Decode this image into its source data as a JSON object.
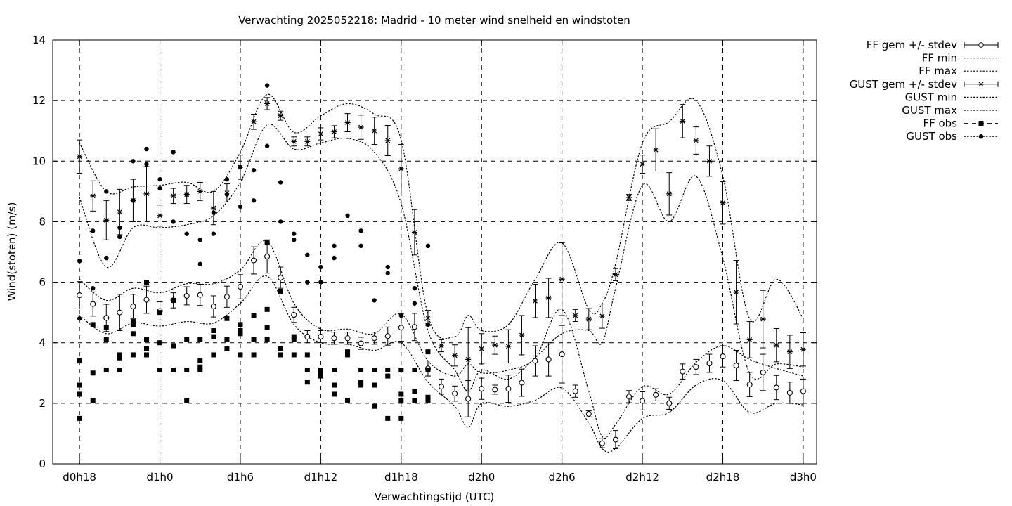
{
  "chart_data": {
    "type": "scatter",
    "title": "Verwachting 2025052218: Madrid - 10 meter wind snelheid en windstoten",
    "xlabel": "Verwachtingstijd (UTC)",
    "ylabel": "Wind(stoten) (m/s)",
    "xlim": [
      -2,
      55
    ],
    "ylim": [
      0,
      14
    ],
    "yticks": [
      0,
      2,
      4,
      6,
      8,
      10,
      12,
      14
    ],
    "xticks": [
      0,
      6,
      12,
      18,
      24,
      30,
      36,
      42,
      48,
      54
    ],
    "xtick_labels": [
      "d0h18",
      "d1h0",
      "d1h6",
      "d1h12",
      "d1h18",
      "d2h0",
      "d2h6",
      "d2h12",
      "d2h18",
      "d3h0"
    ],
    "grid": true,
    "legend_position": "outside-top-right",
    "legend": [
      "FF gem +/- stdev",
      "FF min",
      "FF max",
      "GUST gem +/- stdev",
      "GUST min",
      "GUST max",
      "FF obs",
      "GUST obs"
    ],
    "series": [
      {
        "name": "FF gem +/- stdev",
        "x": [
          0,
          1,
          2,
          3,
          4,
          5,
          6,
          7,
          8,
          9,
          10,
          11,
          12,
          13,
          14,
          15,
          16,
          17,
          18,
          19,
          20,
          21,
          22,
          23,
          24,
          25,
          26,
          27,
          28,
          29,
          30,
          31,
          32,
          33,
          34,
          35,
          36,
          37,
          38,
          39,
          40,
          41,
          42,
          43,
          44,
          45,
          46,
          47,
          48,
          49,
          50,
          51,
          52,
          53,
          54
        ],
        "mean": [
          5.57,
          5.28,
          4.82,
          5.0,
          5.2,
          5.42,
          5.05,
          5.4,
          5.55,
          5.58,
          5.2,
          5.52,
          5.85,
          6.72,
          6.85,
          6.15,
          4.92,
          4.2,
          4.2,
          4.15,
          4.15,
          3.98,
          4.15,
          4.22,
          4.5,
          4.52,
          3.15,
          2.55,
          2.32,
          2.15,
          2.48,
          2.45,
          2.48,
          2.68,
          3.4,
          3.45,
          3.62,
          2.4,
          1.65,
          0.68,
          0.8,
          2.22,
          2.08,
          2.28,
          2.0,
          3.05,
          3.2,
          3.32,
          3.55,
          3.25,
          2.62,
          3.02,
          2.52,
          2.35,
          2.4
        ],
        "stdev": [
          0.45,
          0.4,
          0.45,
          0.6,
          0.4,
          0.45,
          0.3,
          0.25,
          0.3,
          0.35,
          0.35,
          0.35,
          0.4,
          0.45,
          0.55,
          0.35,
          0.25,
          0.2,
          0.2,
          0.2,
          0.2,
          0.2,
          0.2,
          0.3,
          0.45,
          0.45,
          0.25,
          0.25,
          0.25,
          0.6,
          0.35,
          0.15,
          0.45,
          0.45,
          0.5,
          0.55,
          0.95,
          0.2,
          0.1,
          0.15,
          0.3,
          0.2,
          0.3,
          0.2,
          0.2,
          0.25,
          0.25,
          0.3,
          0.35,
          0.5,
          0.4,
          0.6,
          0.4,
          0.35,
          0.4
        ]
      },
      {
        "name": "FF min",
        "x": [
          0,
          2,
          4,
          6,
          8,
          10,
          12,
          14,
          16,
          18,
          20,
          22,
          24,
          26,
          28,
          29,
          30,
          32,
          34,
          36,
          38,
          39,
          40,
          42,
          44,
          46,
          48,
          50,
          52,
          54
        ],
        "values": [
          4.9,
          4.3,
          4.65,
          4.55,
          4.7,
          4.65,
          5.3,
          6.2,
          4.6,
          4.0,
          3.95,
          3.75,
          4.0,
          2.7,
          1.9,
          1.2,
          2.0,
          1.9,
          2.1,
          2.5,
          1.35,
          0.5,
          0.5,
          1.5,
          1.7,
          2.6,
          2.75,
          1.7,
          2.0,
          1.95
        ]
      },
      {
        "name": "FF max",
        "x": [
          0,
          2,
          4,
          6,
          8,
          10,
          12,
          14,
          16,
          18,
          20,
          22,
          24,
          26,
          28,
          29,
          30,
          32,
          34,
          36,
          38,
          39,
          40,
          42,
          44,
          46,
          48,
          50,
          52,
          54
        ],
        "values": [
          6.1,
          5.4,
          5.8,
          5.65,
          5.95,
          5.95,
          6.4,
          7.35,
          5.3,
          4.45,
          4.45,
          4.3,
          4.95,
          3.4,
          2.9,
          3.3,
          3.0,
          3.1,
          3.5,
          5.1,
          2.4,
          0.9,
          1.3,
          2.55,
          2.3,
          3.35,
          3.9,
          3.45,
          3.15,
          2.9
        ]
      },
      {
        "name": "GUST gem +/- stdev",
        "x": [
          0,
          1,
          2,
          3,
          4,
          5,
          6,
          7,
          8,
          9,
          10,
          11,
          12,
          13,
          14,
          15,
          16,
          17,
          18,
          19,
          20,
          21,
          22,
          23,
          24,
          25,
          26,
          27,
          28,
          29,
          30,
          31,
          32,
          33,
          34,
          35,
          36,
          37,
          38,
          39,
          40,
          41,
          42,
          43,
          44,
          45,
          46,
          47,
          48,
          49,
          50,
          51,
          52,
          53,
          54
        ],
        "mean": [
          10.15,
          8.85,
          8.05,
          8.32,
          8.7,
          8.92,
          8.2,
          8.85,
          8.9,
          9.0,
          8.45,
          8.95,
          9.8,
          11.3,
          11.9,
          11.5,
          10.65,
          10.65,
          10.9,
          10.97,
          11.27,
          11.12,
          11.0,
          10.68,
          9.75,
          7.65,
          4.82,
          3.9,
          3.58,
          3.45,
          3.8,
          3.92,
          3.88,
          4.25,
          5.38,
          5.48,
          6.1,
          4.9,
          4.78,
          4.88,
          6.25,
          8.8,
          9.9,
          10.37,
          8.92,
          11.32,
          10.68,
          10.0,
          8.62,
          5.67,
          4.1,
          4.78,
          3.92,
          3.7,
          3.78
        ]
      },
      {
        "name": "GUST min",
        "x": [
          0,
          2,
          4,
          6,
          8,
          10,
          12,
          14,
          16,
          18,
          20,
          22,
          24,
          26,
          28,
          29,
          30,
          32,
          34,
          36,
          38,
          39,
          40,
          42,
          44,
          46,
          48,
          50,
          52,
          54
        ],
        "values": [
          8.8,
          6.5,
          7.8,
          7.8,
          7.9,
          8.2,
          9.3,
          11.2,
          10.4,
          10.6,
          10.75,
          10.3,
          8.6,
          4.4,
          3.1,
          2.4,
          3.1,
          2.8,
          3.5,
          4.3,
          4.4,
          4.0,
          5.8,
          9.2,
          8.0,
          9.5,
          6.8,
          3.0,
          3.3,
          3.2
        ]
      },
      {
        "name": "GUST max",
        "x": [
          0,
          2,
          4,
          6,
          8,
          10,
          12,
          14,
          16,
          18,
          20,
          22,
          24,
          26,
          28,
          29,
          30,
          32,
          34,
          36,
          38,
          39,
          40,
          42,
          44,
          46,
          48,
          50,
          52,
          54
        ],
        "values": [
          10.6,
          9.0,
          9.15,
          9.2,
          9.3,
          9.0,
          10.3,
          12.2,
          10.95,
          11.5,
          11.9,
          11.55,
          10.7,
          4.9,
          4.2,
          4.9,
          4.4,
          4.6,
          6.1,
          7.3,
          5.1,
          5.3,
          6.6,
          10.6,
          11.3,
          12.0,
          9.5,
          4.8,
          6.1,
          4.8
        ]
      }
    ],
    "ff_obs": [
      [
        0,
        1.5
      ],
      [
        0,
        2.3
      ],
      [
        0,
        2.6
      ],
      [
        0,
        3.4
      ],
      [
        1,
        2.1
      ],
      [
        1,
        3.0
      ],
      [
        1,
        4.6
      ],
      [
        2,
        3.1
      ],
      [
        2,
        4.1
      ],
      [
        2,
        4.5
      ],
      [
        3,
        3.1
      ],
      [
        3,
        3.5
      ],
      [
        3,
        3.6
      ],
      [
        4,
        3.6
      ],
      [
        4,
        4.3
      ],
      [
        4,
        4.6
      ],
      [
        4,
        4.7
      ],
      [
        5,
        3.6
      ],
      [
        5,
        3.8
      ],
      [
        5,
        4.1
      ],
      [
        5,
        6.0
      ],
      [
        6,
        3.1
      ],
      [
        6,
        4.0
      ],
      [
        6,
        5.0
      ],
      [
        7,
        3.1
      ],
      [
        7,
        3.9
      ],
      [
        7,
        5.4
      ],
      [
        8,
        2.1
      ],
      [
        8,
        3.1
      ],
      [
        8,
        4.1
      ],
      [
        9,
        3.1
      ],
      [
        9,
        3.2
      ],
      [
        9,
        3.4
      ],
      [
        9,
        4.1
      ],
      [
        10,
        3.6
      ],
      [
        10,
        4.2
      ],
      [
        10,
        4.4
      ],
      [
        11,
        3.8
      ],
      [
        11,
        4.1
      ],
      [
        11,
        4.8
      ],
      [
        12,
        3.6
      ],
      [
        12,
        4.3
      ],
      [
        12,
        4.4
      ],
      [
        12,
        4.6
      ],
      [
        13,
        3.6
      ],
      [
        13,
        4.1
      ],
      [
        13,
        4.9
      ],
      [
        14,
        4.1
      ],
      [
        14,
        4.5
      ],
      [
        14,
        5.1
      ],
      [
        14,
        7.3
      ],
      [
        15,
        3.6
      ],
      [
        15,
        3.8
      ],
      [
        15,
        5.7
      ],
      [
        16,
        3.6
      ],
      [
        16,
        4.1
      ],
      [
        16,
        4.2
      ],
      [
        17,
        2.7
      ],
      [
        17,
        3.1
      ],
      [
        17,
        3.6
      ],
      [
        18,
        2.9
      ],
      [
        18,
        3.0
      ],
      [
        18,
        3.1
      ],
      [
        19,
        2.3
      ],
      [
        19,
        2.6
      ],
      [
        19,
        3.1
      ],
      [
        20,
        2.1
      ],
      [
        20,
        3.6
      ],
      [
        20,
        3.7
      ],
      [
        21,
        2.6
      ],
      [
        21,
        2.7
      ],
      [
        21,
        3.1
      ],
      [
        22,
        1.9
      ],
      [
        22,
        2.6
      ],
      [
        22,
        3.1
      ],
      [
        23,
        1.5
      ],
      [
        23,
        2.9
      ],
      [
        23,
        3.1
      ],
      [
        24,
        1.5
      ],
      [
        24,
        2.1
      ],
      [
        24,
        2.3
      ],
      [
        24,
        3.1
      ],
      [
        25,
        2.1
      ],
      [
        25,
        2.4
      ],
      [
        25,
        3.1
      ],
      [
        26,
        2.1
      ],
      [
        26,
        2.2
      ],
      [
        26,
        3.1
      ],
      [
        26,
        3.7
      ]
    ],
    "gust_obs": [
      [
        0,
        4.8
      ],
      [
        0,
        6.7
      ],
      [
        1,
        5.8
      ],
      [
        1,
        7.7
      ],
      [
        2,
        6.8
      ],
      [
        2,
        9.0
      ],
      [
        3,
        7.5
      ],
      [
        3,
        7.8
      ],
      [
        4,
        8.7
      ],
      [
        4,
        10.0
      ],
      [
        5,
        9.9
      ],
      [
        5,
        10.4
      ],
      [
        6,
        9.1
      ],
      [
        6,
        9.4
      ],
      [
        7,
        8.0
      ],
      [
        7,
        10.3
      ],
      [
        8,
        7.6
      ],
      [
        8,
        8.9
      ],
      [
        9,
        6.6
      ],
      [
        9,
        7.4
      ],
      [
        10,
        7.6
      ],
      [
        10,
        8.3
      ],
      [
        11,
        8.9
      ],
      [
        11,
        9.4
      ],
      [
        12,
        8.5
      ],
      [
        12,
        9.8
      ],
      [
        13,
        8.7
      ],
      [
        13,
        9.7
      ],
      [
        14,
        10.5
      ],
      [
        14,
        12.5
      ],
      [
        15,
        8.0
      ],
      [
        15,
        9.3
      ],
      [
        16,
        7.4
      ],
      [
        16,
        7.6
      ],
      [
        17,
        6.0
      ],
      [
        17,
        6.9
      ],
      [
        18,
        6.0
      ],
      [
        18,
        6.5
      ],
      [
        19,
        6.8
      ],
      [
        19,
        7.2
      ],
      [
        20,
        8.2
      ],
      [
        21,
        7.2
      ],
      [
        21,
        7.7
      ],
      [
        22,
        5.4
      ],
      [
        23,
        6.3
      ],
      [
        23,
        6.5
      ],
      [
        24,
        4.9
      ],
      [
        25,
        5.3
      ],
      [
        25,
        5.8
      ],
      [
        26,
        4.6
      ],
      [
        26,
        7.2
      ]
    ]
  }
}
